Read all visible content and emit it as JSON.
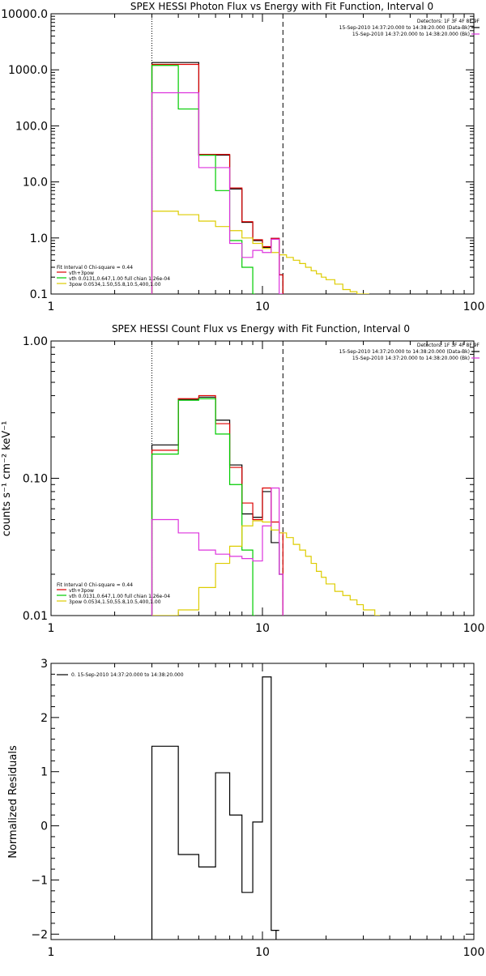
{
  "chart_data": [
    {
      "type": "line",
      "title": "SPEX HESSI Photon Flux vs Energy with Fit Function, Interval 0",
      "xscale": "log",
      "yscale": "log",
      "xlim": [
        1,
        100
      ],
      "ylim": [
        0.1,
        10000
      ],
      "xticks": [
        "1",
        "10",
        "100"
      ],
      "yticks": [
        "0.1",
        "1.0",
        "10.0",
        "100.0",
        "1000.0",
        "10000.0"
      ],
      "ytick_values": [
        0.1,
        1,
        10,
        100,
        1000,
        10000
      ],
      "xtick_values": [
        1,
        10,
        100
      ],
      "vlines": [
        {
          "x": 3,
          "style": "dotted"
        },
        {
          "x": 12.5,
          "style": "dashed"
        }
      ],
      "legend_top_right": [
        "Detectors: 1F 3F 4F 8F 9F",
        "15-Sep-2010 14:37:20.000 to 14:38:20.000 (Data-Bk)",
        "15-Sep-2010 14:37:20.000 to 14:38:20.000 (Bk)"
      ],
      "legend_top_colors": [
        "",
        "#000000",
        "#dd33dd"
      ],
      "legend_bottom_left": [
        "Fit Interval 0   Chi-square = 0.44",
        "vth+3pow",
        "vth 0.0131,0.647,1.00   full chian 1.26e-04",
        "3pow 0.0534,1.50,55.8,10.5,400,1.00"
      ],
      "legend_bottom_colors": [
        "",
        "#dd0000",
        "#00cc00",
        "#ddcc00"
      ],
      "series": [
        {
          "color": "#000000",
          "x": [
            3,
            4,
            5,
            6,
            7,
            8,
            9,
            10,
            11,
            12
          ],
          "y": [
            1350,
            1350,
            30,
            30,
            7.5,
            1.9,
            0.9,
            0.68,
            0.98,
            0.22
          ],
          "xend": 12.5
        },
        {
          "color": "#dd0000",
          "x": [
            3,
            4,
            5,
            6,
            7,
            8,
            9,
            10,
            11,
            12
          ],
          "y": [
            1250,
            1250,
            31,
            31,
            7.8,
            1.95,
            0.93,
            0.7,
            0.98,
            0.22
          ],
          "xend": 12.5
        },
        {
          "color": "#00cc00",
          "x": [
            3,
            4,
            5,
            6,
            7,
            8,
            9
          ],
          "y": [
            1200,
            200,
            30,
            7,
            0.9,
            0.3,
            0.1
          ],
          "xend": 9.2
        },
        {
          "color": "#ddcc00",
          "x": [
            3,
            4,
            5,
            6,
            7,
            8,
            9,
            10,
            11,
            12,
            13,
            14,
            15,
            16,
            17,
            18,
            19,
            20,
            22,
            24,
            26,
            28,
            30
          ],
          "y": [
            3,
            2.6,
            2,
            1.6,
            1.35,
            1,
            0.8,
            0.65,
            0.55,
            0.5,
            0.45,
            0.4,
            0.35,
            0.3,
            0.26,
            0.23,
            0.2,
            0.18,
            0.15,
            0.12,
            0.11,
            0.1,
            0.1
          ],
          "xend": 32
        },
        {
          "color": "#dd33dd",
          "x": [
            3,
            4,
            5,
            6,
            7,
            8,
            9,
            10,
            11,
            12
          ],
          "y": [
            390,
            390,
            18,
            18,
            0.8,
            0.45,
            0.6,
            0.55,
            0.95,
            0.1
          ],
          "xend": 12.5
        }
      ]
    },
    {
      "type": "line",
      "title": "SPEX HESSI Count Flux vs Energy with Fit Function, Interval 0",
      "ylabel": "counts s⁻¹ cm⁻² keV⁻¹",
      "xscale": "log",
      "yscale": "log",
      "xlim": [
        1,
        100
      ],
      "ylim": [
        0.01,
        1
      ],
      "xticks": [
        "1",
        "10",
        "100"
      ],
      "yticks": [
        "0.01",
        "0.10",
        "1.00"
      ],
      "ytick_values": [
        0.01,
        0.1,
        1
      ],
      "xtick_values": [
        1,
        10,
        100
      ],
      "vlines": [
        {
          "x": 3,
          "style": "dotted"
        },
        {
          "x": 12.5,
          "style": "dashed"
        }
      ],
      "legend_top_right": [
        "Detectors: 1F 3F 4F 8F 9F",
        "15-Sep-2010 14:37:20.000 to 14:38:20.000 (Data-Bk)",
        "15-Sep-2010 14:37:20.000 to 14:38:20.000 (Bk)"
      ],
      "legend_top_colors": [
        "",
        "#000000",
        "#dd33dd"
      ],
      "legend_bottom_left": [
        "Fit Interval 0   Chi-square = 0.44",
        "vth+3pow",
        "vth 0.0131,0.647,1.00   full chian 1.26e-04",
        "3pow 0.0534,1.50,55.8,10.5,400,1.00"
      ],
      "legend_bottom_colors": [
        "",
        "#dd0000",
        "#00cc00",
        "#ddcc00"
      ],
      "series": [
        {
          "color": "#000000",
          "x": [
            3,
            4,
            5,
            6,
            7,
            8,
            9,
            10,
            11,
            12
          ],
          "y": [
            0.175,
            0.375,
            0.39,
            0.265,
            0.125,
            0.055,
            0.052,
            0.08,
            0.034,
            0.02
          ],
          "xend": 12.5
        },
        {
          "color": "#dd0000",
          "x": [
            3,
            4,
            5,
            6,
            7,
            8,
            9,
            10,
            11,
            12
          ],
          "y": [
            0.16,
            0.38,
            0.4,
            0.25,
            0.12,
            0.066,
            0.05,
            0.085,
            0.048,
            0.04
          ],
          "xend": 12.5
        },
        {
          "color": "#00cc00",
          "x": [
            3,
            4,
            5,
            6,
            7,
            8,
            9
          ],
          "y": [
            0.15,
            0.37,
            0.38,
            0.21,
            0.09,
            0.03,
            0.01
          ],
          "xend": 9.2
        },
        {
          "color": "#ddcc00",
          "x": [
            3,
            4,
            5,
            6,
            7,
            8,
            9,
            10,
            11,
            12,
            13,
            14,
            15,
            16,
            17,
            18,
            19,
            20,
            22,
            24,
            26,
            28,
            30,
            32,
            34
          ],
          "y": [
            0.01,
            0.011,
            0.016,
            0.024,
            0.032,
            0.045,
            0.049,
            0.048,
            0.042,
            0.04,
            0.037,
            0.033,
            0.03,
            0.027,
            0.024,
            0.021,
            0.019,
            0.017,
            0.015,
            0.014,
            0.013,
            0.012,
            0.011,
            0.011,
            0.01
          ],
          "xend": 36
        },
        {
          "color": "#dd33dd",
          "x": [
            3,
            4,
            5,
            6,
            7,
            8,
            9,
            10,
            11,
            12
          ],
          "y": [
            0.05,
            0.04,
            0.03,
            0.028,
            0.027,
            0.026,
            0.025,
            0.045,
            0.085,
            0.02
          ],
          "xend": 12.5
        }
      ]
    },
    {
      "type": "line",
      "ylabel": "Normalized Residuals",
      "xscale": "log",
      "yscale": "linear",
      "xlim": [
        1,
        100
      ],
      "ylim": [
        -2.1,
        3
      ],
      "xticks": [
        "1",
        "10",
        "100"
      ],
      "yticks": [
        "−2",
        "−1",
        "0",
        "1",
        "2",
        "3"
      ],
      "ytick_values": [
        -2,
        -1,
        0,
        1,
        2,
        3
      ],
      "xtick_values": [
        1,
        10,
        100
      ],
      "vlines": [],
      "legend_top_left": [
        "0. 15-Sep-2010 14:37:20.000 to 14:38:20.000"
      ],
      "series": [
        {
          "color": "#000000",
          "x": [
            3,
            4,
            5,
            6,
            7,
            8,
            9,
            10,
            11,
            12
          ],
          "y": [
            1.47,
            -0.53,
            -0.76,
            0.98,
            0.2,
            -1.23,
            0.07,
            2.75,
            -1.93,
            -1.93
          ],
          "xend": 11.6
        }
      ]
    }
  ]
}
